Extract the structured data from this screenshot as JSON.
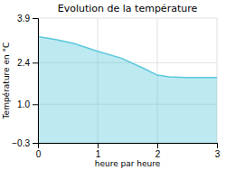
{
  "chart_data": {
    "type": "area",
    "title": "Evolution de la température",
    "xlabel": "heure par heure",
    "ylabel": "Température en °C",
    "x": [
      0,
      0.3,
      0.6,
      1.0,
      1.4,
      1.8,
      2.0,
      2.2,
      2.5,
      3.0
    ],
    "values": [
      3.28,
      3.18,
      3.05,
      2.78,
      2.55,
      2.18,
      1.98,
      1.92,
      1.9,
      1.9
    ],
    "color": "#5bc8dc",
    "xlim": [
      0,
      3
    ],
    "ylim": [
      -0.3,
      3.9
    ],
    "xticks": [
      0,
      1,
      2,
      3
    ],
    "yticks": [
      {
        "value": -0.3,
        "label": "−0.3"
      },
      {
        "value": 1.0,
        "label": "1.0"
      },
      2.4,
      3.9
    ],
    "grid": true
  }
}
